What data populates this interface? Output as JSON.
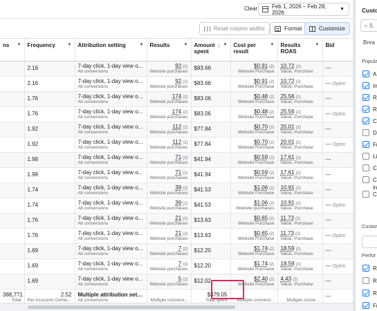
{
  "toolbar": {
    "clear_label": "Clear",
    "date_range": "Feb 1, 2026 – Feb 28, 2026",
    "reset_columns_label": "Reset column widths",
    "format_label": "Format",
    "customize_label": "Customize"
  },
  "columns": {
    "results_partial": "ns",
    "frequency": "Frequency",
    "attribution": "Attribution setting",
    "results": "Results",
    "amount_spent_1": "Amount",
    "amount_spent_2": "spent",
    "cost_per_result_1": "Cost per",
    "cost_per_result_2": "result",
    "results_roas_1": "Results",
    "results_roas_2": "ROAS",
    "bid": "Bid"
  },
  "rows": [
    {
      "freq": "2.16",
      "attr": "7-day click, 1-day view o...",
      "attr_sub": "All conversions",
      "res": "92",
      "res_n": "(2)",
      "res_sub": "Website purchases",
      "amt": "$83.66",
      "cpr": "$0.91",
      "cpr_n": "(2)",
      "cpr_sub": "Website Purchase",
      "roas": "10.72",
      "roas_n": "(2)",
      "roas_sub": "Value, Purchase",
      "bid": "—"
    },
    {
      "freq": "2.16",
      "attr": "7-day click, 1-day view o...",
      "attr_sub": "All conversions",
      "res": "92",
      "res_n": "(2)",
      "res_sub": "Website purchases",
      "amt": "$83.66",
      "cpr": "$0.91",
      "cpr_n": "(2)",
      "cpr_sub": "Website Purchase",
      "roas": "10.72",
      "roas_n": "(2)",
      "roas_sub": "Value, Purchase",
      "bid": "—",
      "bid_extra": "Optim"
    },
    {
      "freq": "1.76",
      "attr": "7-day click, 1-day view o...",
      "attr_sub": "All conversions",
      "res": "174",
      "res_n": "(2)",
      "res_sub": "Website purchases",
      "amt": "$83.06",
      "cpr": "$0.48",
      "cpr_n": "(2)",
      "cpr_sub": "Website Purchase",
      "roas": "25.56",
      "roas_n": "(2)",
      "roas_sub": "Value, Purchase",
      "bid": "—"
    },
    {
      "freq": "1.76",
      "attr": "7-day click, 1-day view o...",
      "attr_sub": "All conversions",
      "res": "174",
      "res_n": "(2)",
      "res_sub": "Website purchases",
      "amt": "$83.06",
      "cpr": "$0.48",
      "cpr_n": "(2)",
      "cpr_sub": "Website Purchase",
      "roas": "25.56",
      "roas_n": "(2)",
      "roas_sub": "Value, Purchase",
      "bid": "—",
      "bid_extra": "Optim"
    },
    {
      "freq": "1.92",
      "attr": "7-day click, 1-day view o...",
      "attr_sub": "All conversions",
      "res": "112",
      "res_n": "(2)",
      "res_sub": "Website purchases",
      "amt": "$77.84",
      "cpr": "$0.70",
      "cpr_n": "(2)",
      "cpr_sub": "Website Purchase",
      "roas": "20.01",
      "roas_n": "(2)",
      "roas_sub": "Value, Purchase",
      "bid": "—"
    },
    {
      "freq": "1.92",
      "attr": "7-day click, 1-day view o...",
      "attr_sub": "All conversions",
      "res": "112",
      "res_n": "(2)",
      "res_sub": "Website purchases",
      "amt": "$77.84",
      "cpr": "$0.70",
      "cpr_n": "(2)",
      "cpr_sub": "Website Purchase",
      "roas": "20.01",
      "roas_n": "(2)",
      "roas_sub": "Value, Purchase",
      "bid": "—",
      "bid_extra": "Optim"
    },
    {
      "freq": "1.98",
      "attr": "7-day click, 1-day view o...",
      "attr_sub": "All conversions",
      "res": "71",
      "res_n": "(2)",
      "res_sub": "Website purchases",
      "amt": "$41.94",
      "cpr": "$0.59",
      "cpr_n": "(2)",
      "cpr_sub": "Website Purchase",
      "roas": "17.61",
      "roas_n": "(2)",
      "roas_sub": "Value, Purchase",
      "bid": "—"
    },
    {
      "freq": "1.98",
      "attr": "7-day click, 1-day view o...",
      "attr_sub": "All conversions",
      "res": "71",
      "res_n": "(2)",
      "res_sub": "Website purchases",
      "amt": "$41.94",
      "cpr": "$0.59",
      "cpr_n": "(2)",
      "cpr_sub": "Website Purchase",
      "roas": "17.61",
      "roas_n": "(2)",
      "roas_sub": "Value, Purchase",
      "bid": "—"
    },
    {
      "freq": "1.74",
      "attr": "7-day click, 1-day view o...",
      "attr_sub": "All conversions",
      "res": "39",
      "res_n": "(2)",
      "res_sub": "Website purchases",
      "amt": "$41.53",
      "cpr": "$1.06",
      "cpr_n": "(2)",
      "cpr_sub": "Website Purchase",
      "roas": "10.91",
      "roas_n": "(2)",
      "roas_sub": "Value, Purchase",
      "bid": "—"
    },
    {
      "freq": "1.74",
      "attr": "7-day click, 1-day view o...",
      "attr_sub": "All conversions",
      "res": "39",
      "res_n": "(2)",
      "res_sub": "Website purchases",
      "amt": "$41.53",
      "cpr": "$1.06",
      "cpr_n": "(2)",
      "cpr_sub": "Website purchases",
      "roas": "10.91",
      "roas_n": "(2)",
      "roas_sub": "Value, Purchase",
      "bid": "—",
      "bid_extra": "Optim"
    },
    {
      "freq": "1.76",
      "attr": "7-day click, 1-day view o...",
      "attr_sub": "All conversions",
      "res": "21",
      "res_n": "(2)",
      "res_sub": "Website purchases",
      "amt": "$13.63",
      "cpr": "$0.65",
      "cpr_n": "(2)",
      "cpr_sub": "Website Purchase",
      "roas": "11.73",
      "roas_n": "(2)",
      "roas_sub": "Value, Purchase",
      "bid": "—"
    },
    {
      "freq": "1.76",
      "attr": "7-day click, 1-day view o...",
      "attr_sub": "All conversions",
      "res": "21",
      "res_n": "(2)",
      "res_sub": "Website purchases",
      "amt": "$13.63",
      "cpr": "$0.65",
      "cpr_n": "(2)",
      "cpr_sub": "Website Purchase",
      "roas": "11.73",
      "roas_n": "(2)",
      "roas_sub": "Value, Purchase",
      "bid": "—",
      "bid_extra": "Optim"
    },
    {
      "freq": "1.69",
      "attr": "7-day click, 1-day view o...",
      "attr_sub": "All conversions",
      "res": "7",
      "res_n": "(2)",
      "res_sub": "Website purchases",
      "amt": "$12.20",
      "cpr": "$1.74",
      "cpr_n": "(2)",
      "cpr_sub": "Website Purchase",
      "roas": "18.59",
      "roas_n": "(2)",
      "roas_sub": "Value, Purchase",
      "bid": "—"
    },
    {
      "freq": "1.69",
      "attr": "7-day click, 1-day view o...",
      "attr_sub": "All conversions",
      "res": "7",
      "res_n": "(2)",
      "res_sub": "Website purchases",
      "amt": "$12.20",
      "cpr": "$1.74",
      "cpr_n": "(2)",
      "cpr_sub": "Website Purchase",
      "roas": "18.59",
      "roas_n": "(2)",
      "roas_sub": "Value, Purchase",
      "bid": "—",
      "bid_extra": "Optim"
    },
    {
      "freq": "1.69",
      "attr": "7-day click, 1-day view o...",
      "attr_sub": "All conversions",
      "res": "5",
      "res_n": "(2)",
      "res_sub": "Website purchases",
      "amt": "$12.02",
      "cpr": "$2.40",
      "cpr_n": "(2)",
      "cpr_sub": "Website Purchase",
      "roas": "4.43",
      "roas_n": "(2)",
      "roas_sub": "Value, Purchase",
      "bid": "—"
    }
  ],
  "footer": {
    "reach": "388,771",
    "reach_sub": "Total",
    "freq": "2.52",
    "freq_sub": "Per Accounts Cente...",
    "attr": "Multiple attribution setti...",
    "attr_sub": "All conversions",
    "res_sub": "Multiple conversi...",
    "amt": "$379.05",
    "amt_sub": "Total spent",
    "cpr_sub": "Multiple conversi...",
    "roas_sub": "Multiple conve...",
    "bid": "—"
  },
  "side_panel": {
    "title": "Custo",
    "search_placeholder": "S",
    "breakdown": "Brea",
    "popular": "Popula",
    "popular_items": [
      {
        "label": "A",
        "checked": true
      },
      {
        "label": "In",
        "checked": true
      },
      {
        "label": "R",
        "checked": true
      },
      {
        "label": "R",
        "checked": true
      },
      {
        "label": "C",
        "checked": true
      },
      {
        "label": "D",
        "checked": false
      },
      {
        "label": "Fr",
        "checked": true
      },
      {
        "label": "Li",
        "checked": false
      },
      {
        "label": "C",
        "checked": false
      },
      {
        "label": "C",
        "checked": false
      },
      {
        "label": "in",
        "checked": false
      },
      {
        "label": "C",
        "checked": false
      }
    ],
    "custom": "Custor",
    "performance": "Perfor",
    "perf_items": [
      {
        "label": "R",
        "checked": true
      },
      {
        "label": "R",
        "checked": false
      },
      {
        "label": "R",
        "checked": true
      },
      {
        "label": "Fr",
        "checked": true
      },
      {
        "label": "In",
        "checked": true
      }
    ]
  }
}
